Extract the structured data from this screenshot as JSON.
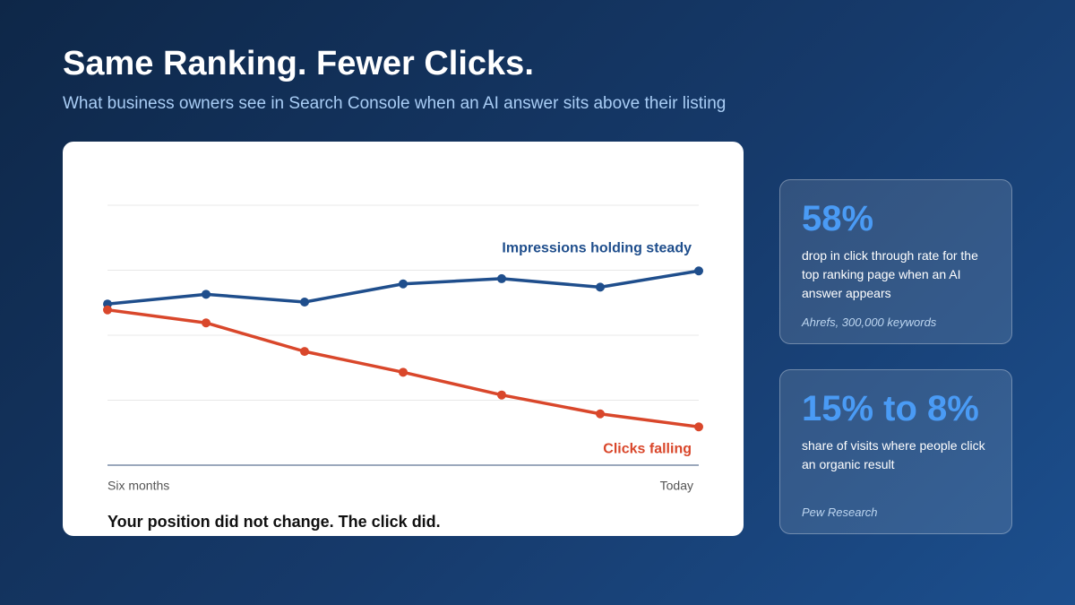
{
  "title": "Same Ranking. Fewer Clicks.",
  "subtitle": "What business owners see in Search Console when an AI answer sits above their listing",
  "chart_data": {
    "type": "line",
    "categories": [
      "Six months",
      null,
      null,
      null,
      null,
      null,
      "Today"
    ],
    "series": [
      {
        "name": "Impressions holding steady",
        "color": "#1f4e8c",
        "values": [
          2.48,
          2.63,
          2.51,
          2.79,
          2.87,
          2.74,
          2.99
        ]
      },
      {
        "name": "Clicks falling",
        "color": "#d9472b",
        "values": [
          2.39,
          2.19,
          1.75,
          1.43,
          1.08,
          0.79,
          0.59
        ]
      }
    ],
    "ylim": [
      0,
      4
    ],
    "yticks": [
      0,
      1,
      2,
      3,
      4
    ],
    "grid": true,
    "caption": "Your position did not change. The click did."
  },
  "cards": [
    {
      "stat": "58%",
      "text": "drop in click through rate for the top ranking page when an AI answer appears",
      "source": "Ahrefs, 300,000 keywords"
    },
    {
      "stat": "15% to 8%",
      "text": "share of visits where people click an organic result",
      "source": "Pew Research"
    }
  ]
}
